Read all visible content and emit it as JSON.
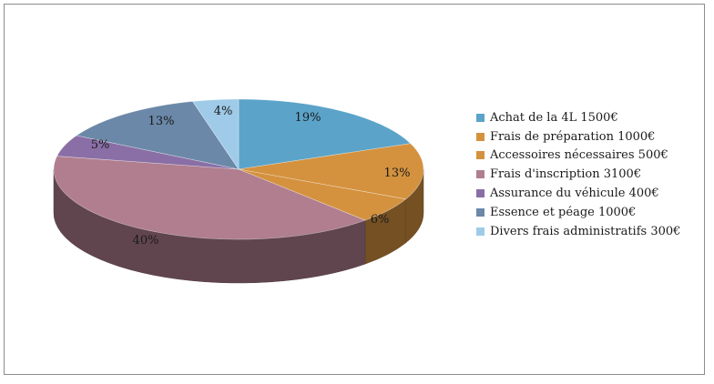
{
  "chart_data": {
    "type": "pie",
    "variant": "3d",
    "title": "",
    "legend_position": "right",
    "slices": [
      {
        "label": "Achat de la 4L 1500€",
        "value": 19,
        "display": "19%",
        "color": "#5ba3c9"
      },
      {
        "label": "Frais de préparation 1000€",
        "value": 13,
        "display": "13%",
        "color": "#d4923f"
      },
      {
        "label": "Accessoires nécessaires 500€",
        "value": 6,
        "display": "6%",
        "color": "#d4923f"
      },
      {
        "label": "Frais d'inscription 3100€",
        "value": 40,
        "display": "40%",
        "color": "#b07e8e"
      },
      {
        "label": "Assurance du véhicule 400€",
        "value": 5,
        "display": "5%",
        "color": "#8a6fa6"
      },
      {
        "label": "Essence et péage 1000€",
        "value": 13,
        "display": "13%",
        "color": "#6b88a8"
      },
      {
        "label": "Divers frais administratifs 300€",
        "value": 4,
        "display": "4%",
        "color": "#9fcbe8"
      }
    ]
  }
}
